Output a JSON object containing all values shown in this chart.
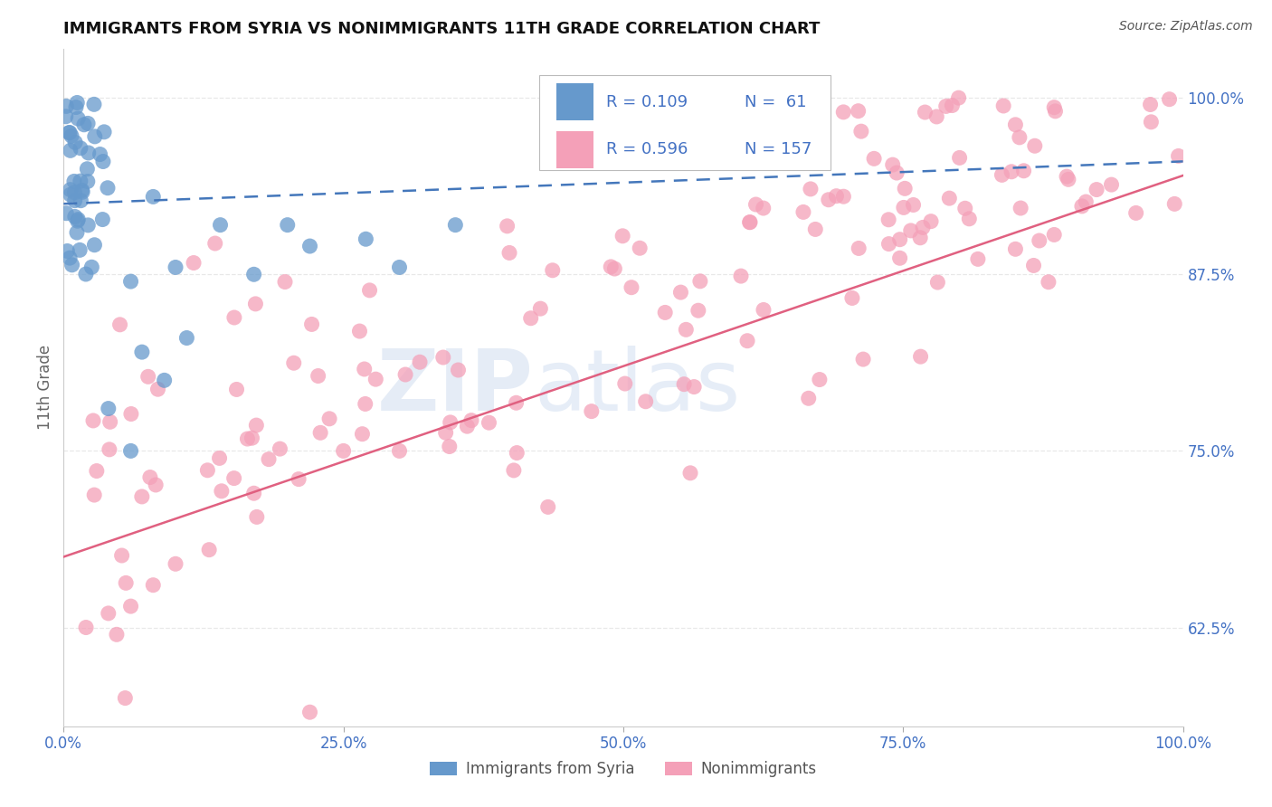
{
  "title": "IMMIGRANTS FROM SYRIA VS NONIMMIGRANTS 11TH GRADE CORRELATION CHART",
  "source": "Source: ZipAtlas.com",
  "ylabel": "11th Grade",
  "xlim": [
    0.0,
    1.0
  ],
  "ylim": [
    0.555,
    1.035
  ],
  "xticks": [
    0.0,
    0.25,
    0.5,
    0.75,
    1.0
  ],
  "xticklabels": [
    "0.0%",
    "25.0%",
    "50.0%",
    "75.0%",
    "100.0%"
  ],
  "yticks_right": [
    0.625,
    0.75,
    0.875,
    1.0
  ],
  "yticklabels_right": [
    "62.5%",
    "75.0%",
    "87.5%",
    "100.0%"
  ],
  "blue_color": "#6699CC",
  "blue_edge": "#4477BB",
  "pink_color": "#F4A0B8",
  "pink_edge": "#E06080",
  "pink_line_color": "#E06080",
  "blue_line_color": "#4477BB",
  "blue_R": 0.109,
  "blue_N": 61,
  "pink_R": 0.596,
  "pink_N": 157,
  "legend_color": "#4472C4",
  "title_color": "#111111",
  "axis_label_color": "#4472C4",
  "background_color": "#ffffff",
  "grid_color": "#e8e8e8",
  "watermark_color": "#D0DDEF",
  "source_color": "#555555"
}
